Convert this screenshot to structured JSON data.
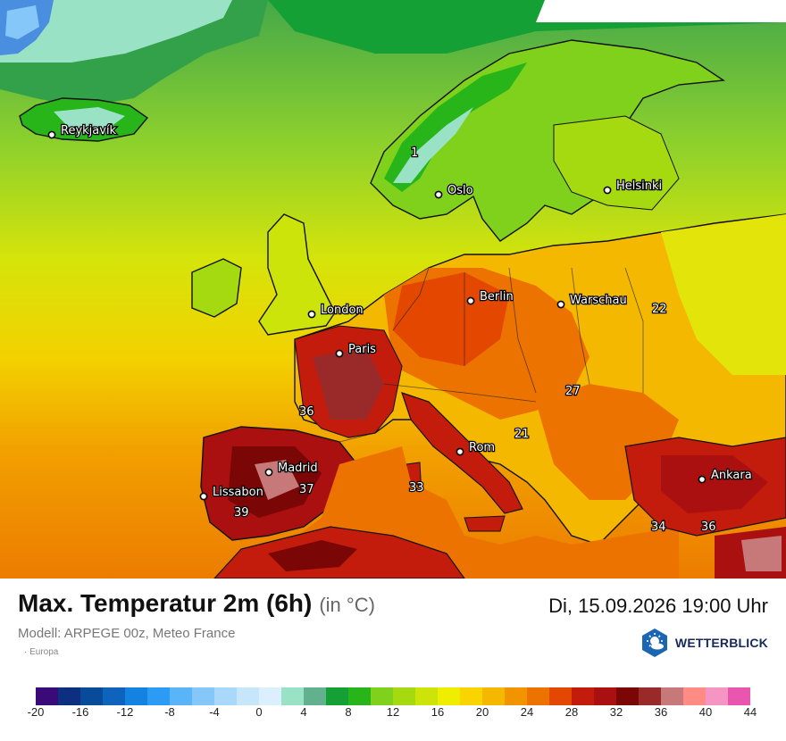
{
  "map": {
    "cities": [
      {
        "name": "Reykjavík"
      },
      {
        "name": "Oslo"
      },
      {
        "name": "Helsinki"
      },
      {
        "name": "London"
      },
      {
        "name": "Berlin"
      },
      {
        "name": "Warschau"
      },
      {
        "name": "Paris"
      },
      {
        "name": "Madrid"
      },
      {
        "name": "Lissabon"
      },
      {
        "name": "Rom"
      },
      {
        "name": "Ankara"
      }
    ],
    "temperature_labels": [
      "1",
      "22",
      "27",
      "36",
      "21",
      "37",
      "33",
      "39",
      "34",
      "36"
    ]
  },
  "header": {
    "title": "Max. Temperatur 2m (6h)",
    "unit": "(in °C)",
    "datetime": "Di, 15.09.2026 19:00 Uhr",
    "model": "Modell: ARPEGE 00z, Meteo France",
    "region": "Europa"
  },
  "logo": {
    "text": "WETTERBLICK",
    "icon": "sun-cloud-icon",
    "color": "#1a66b3"
  },
  "legend": {
    "labels": [
      "-20",
      "-16",
      "-12",
      "-8",
      "-4",
      "0",
      "4",
      "8",
      "12",
      "16",
      "20",
      "24",
      "28",
      "32",
      "36",
      "40",
      "44"
    ],
    "colors": [
      "#3a0a78",
      "#0c2f80",
      "#0a4a9a",
      "#0e63bd",
      "#1482e0",
      "#2b9bf3",
      "#5ab4f8",
      "#86c7fa",
      "#a9d8fb",
      "#c6e6fc",
      "#dcefff",
      "#9ae2c6",
      "#62b08e",
      "#15a036",
      "#27b51a",
      "#7fd11c",
      "#a6da10",
      "#cde40a",
      "#f0ee00",
      "#f8d400",
      "#f5b800",
      "#f29300",
      "#ec7300",
      "#e34700",
      "#c41c0c",
      "#aa1010",
      "#7a0606",
      "#9a2a2a",
      "#c77878",
      "#ff8b84",
      "#f595c4",
      "#e956b0"
    ]
  }
}
